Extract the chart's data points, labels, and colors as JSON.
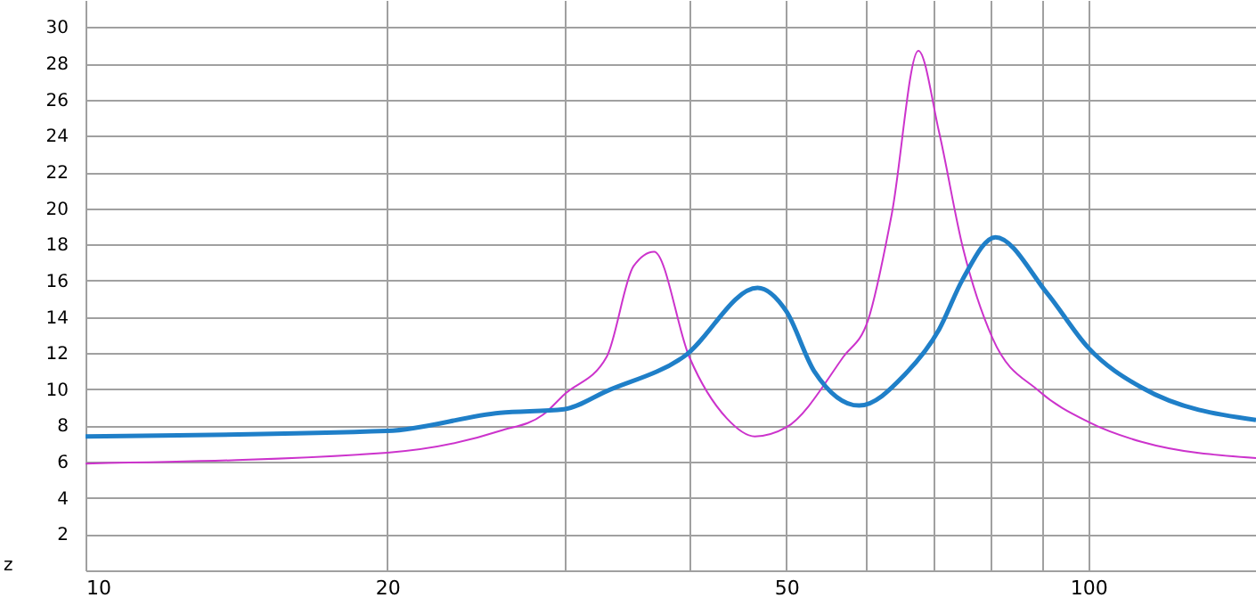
{
  "chart_data": {
    "type": "line",
    "xlabel": "z",
    "log": "x",
    "grid": true,
    "xlim": [
      10,
      147
    ],
    "ylim": [
      0,
      31.5
    ],
    "xticks": [
      10,
      20,
      {
        "value": 30,
        "label": null
      },
      {
        "value": 40,
        "label": null
      },
      50,
      {
        "value": 60,
        "label": null
      },
      {
        "value": 70,
        "label": null
      },
      {
        "value": 80,
        "label": null
      },
      {
        "value": 90,
        "label": null
      },
      100
    ],
    "yticks": [
      2,
      4,
      6,
      8,
      10,
      12,
      14,
      16,
      18,
      20,
      22,
      24,
      26,
      28,
      30
    ],
    "series": [
      {
        "color": "#cc33cc",
        "x": [
          10,
          20,
          25.9,
          28.6,
          30,
          33.1,
          35.2,
          36.9,
          40,
          43.6,
          46.5,
          50,
          57,
          60.3,
          63.7,
          67.7,
          71,
          75,
          80.3,
          89.3,
          100,
          113,
          147
        ],
        "values": [
          5.9,
          6.5,
          7.7,
          8.6,
          9.7,
          11.8,
          16.8,
          17.6,
          11.8,
          8.4,
          7.4,
          7.9,
          11.8,
          13.8,
          19.7,
          28.7,
          24.2,
          17.8,
          12.8,
          9.9,
          8.2,
          7.1,
          6.2
        ]
      },
      {
        "color": "#1f7fc8",
        "x": [
          10,
          20,
          25.9,
          30,
          33.1,
          39.5,
          46.8,
          50,
          53.3,
          59.1,
          65.6,
          71,
          75,
          80.8,
          91,
          100,
          113,
          147
        ],
        "values": [
          7.4,
          7.7,
          8.7,
          8.9,
          9.9,
          11.8,
          15.6,
          14.3,
          11.0,
          9.1,
          10.8,
          13.3,
          16.1,
          18.4,
          15.3,
          12.3,
          10.1,
          8.3
        ]
      }
    ]
  }
}
